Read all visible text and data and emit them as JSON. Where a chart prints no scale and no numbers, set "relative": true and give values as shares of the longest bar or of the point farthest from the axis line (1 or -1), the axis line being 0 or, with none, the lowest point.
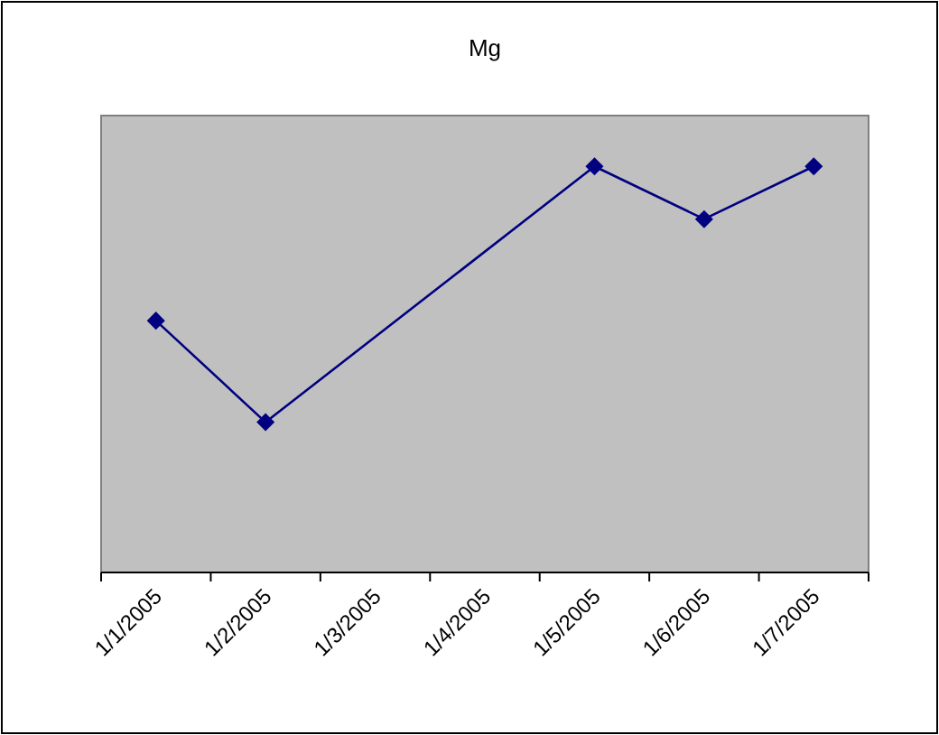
{
  "chart_data": {
    "type": "line",
    "title": "Mg",
    "relative": true,
    "categories": [
      "1/1/2005",
      "1/2/2005",
      "1/3/2005",
      "1/4/2005",
      "1/5/2005",
      "1/6/2005",
      "1/7/2005"
    ],
    "series": [
      {
        "color": "#000080",
        "x": [
          "1/1/2005",
          "1/2/2005",
          "1/5/2005",
          "1/6/2005",
          "1/7/2005"
        ],
        "values": [
          0.62,
          0.37,
          1,
          0.87,
          1
        ]
      }
    ],
    "marker": "diamond",
    "line_style": "solid"
  }
}
